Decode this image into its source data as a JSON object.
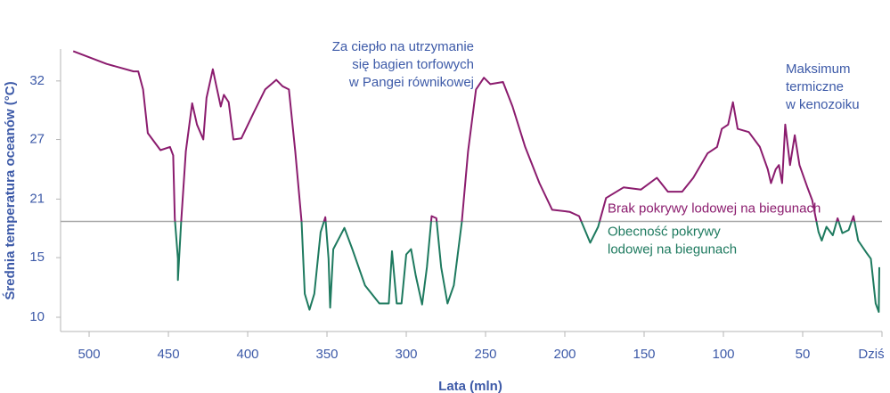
{
  "chart_data": {
    "type": "line",
    "x_label": "Lata (mln)",
    "y_label": "Średnia temperatura oceanów (°C)",
    "xlim": [
      518,
      0
    ],
    "ylim": [
      8.66,
      35.2
    ],
    "xticks": [
      500,
      450,
      400,
      350,
      300,
      250,
      200,
      150,
      100,
      50,
      {
        "value": 0,
        "label": "Dziś"
      }
    ],
    "yticks": [
      {
        "value": 10,
        "label": "10"
      },
      {
        "value": 15.6,
        "label": "15"
      },
      {
        "value": 21.1,
        "label": "21"
      },
      {
        "value": 26.7,
        "label": "27"
      },
      {
        "value": 32.2,
        "label": "32"
      }
    ],
    "threshold": {
      "value": 19,
      "color": "#a9a9a9",
      "above_label": "Brak pokrywy lodowej na biegunach",
      "above_color": "#8b1c6e",
      "below_label": [
        "Obecność pokrywy",
        "lodowej na biegunach"
      ],
      "below_color": "#1e7a5f"
    },
    "annotations": [
      {
        "lines": [
          "Za ciepło na utrzymanie",
          "się bagien torfowych",
          "w Pangei równikowej"
        ]
      },
      {
        "lines": [
          "Maksimum",
          "termiczne",
          "w kenozoiku"
        ]
      }
    ],
    "x": [
      510,
      489,
      472,
      469,
      466,
      463,
      455,
      449,
      447,
      446,
      444,
      444,
      442,
      439,
      435,
      432,
      428,
      426,
      422,
      420,
      417,
      415,
      412,
      409,
      404,
      396,
      389,
      382,
      378,
      374,
      370,
      366,
      364,
      361,
      358,
      354,
      351,
      349,
      348,
      346,
      339,
      334,
      326,
      317,
      311,
      309,
      306,
      303,
      300,
      297,
      294,
      290,
      287,
      284,
      281,
      278,
      274,
      270,
      265,
      261,
      256,
      251,
      247,
      239,
      233,
      225,
      216,
      208,
      197,
      191,
      184,
      179,
      174,
      163,
      152,
      142,
      135,
      126,
      119,
      110,
      104,
      101,
      97,
      94,
      91,
      84,
      77,
      72,
      70,
      67,
      65,
      63,
      61,
      58,
      55,
      52,
      47,
      44,
      40,
      38,
      35,
      31,
      28,
      25,
      21,
      18,
      15,
      10,
      7,
      4,
      2,
      1.7
    ],
    "values": [
      35.0,
      33.8,
      33.1,
      33.1,
      31.4,
      27.3,
      25.7,
      26.0,
      25.2,
      19.3,
      15.5,
      13.5,
      18.9,
      25.6,
      30.1,
      28.1,
      26.7,
      30.6,
      33.3,
      31.9,
      29.8,
      30.9,
      30.2,
      26.7,
      26.8,
      29.3,
      31.4,
      32.3,
      31.7,
      31.4,
      25.6,
      19.0,
      12.2,
      10.7,
      12.2,
      18.0,
      19.4,
      15.5,
      10.9,
      16.4,
      18.4,
      16.4,
      13.0,
      11.3,
      11.3,
      16.2,
      11.3,
      11.3,
      15.9,
      16.4,
      13.9,
      11.2,
      14.7,
      19.5,
      19.3,
      14.7,
      11.3,
      13.0,
      18.9,
      25.6,
      31.4,
      32.5,
      31.9,
      32.1,
      29.8,
      26.0,
      22.6,
      20.1,
      19.9,
      19.5,
      17.0,
      18.5,
      21.2,
      22.2,
      22.0,
      23.1,
      21.8,
      21.8,
      23.1,
      25.4,
      26.0,
      27.7,
      28.1,
      30.2,
      27.7,
      27.4,
      26.0,
      23.9,
      22.6,
      23.9,
      24.3,
      22.6,
      28.1,
      24.3,
      27.1,
      24.3,
      22.2,
      21.0,
      18.0,
      17.2,
      18.5,
      17.7,
      19.3,
      17.9,
      18.2,
      19.5,
      17.2,
      16.1,
      15.5,
      11.3,
      10.5,
      14.7
    ]
  }
}
